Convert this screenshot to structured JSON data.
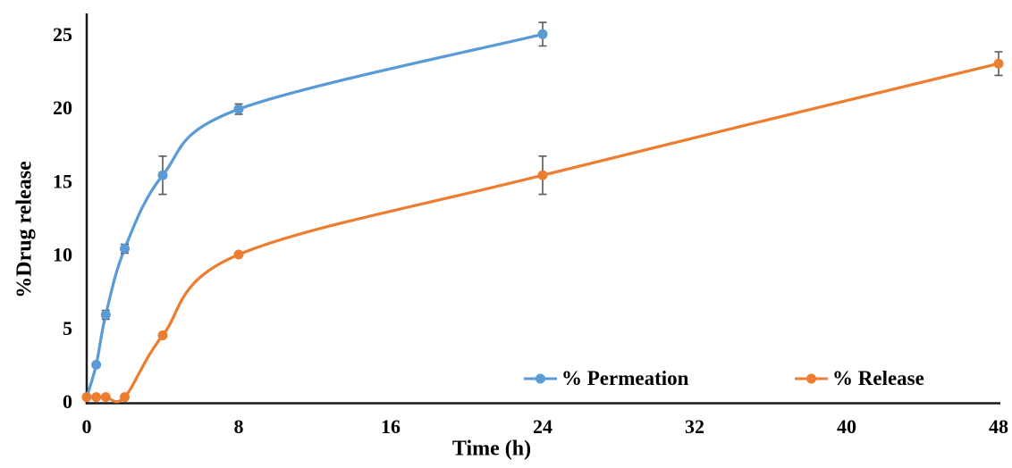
{
  "chart_data": {
    "type": "line",
    "title": "",
    "xlabel": "Time (h)",
    "ylabel": "%Drug release",
    "xlim": [
      0,
      48
    ],
    "ylim": [
      0,
      25
    ],
    "x_ticks": [
      0,
      8,
      16,
      24,
      32,
      40,
      48
    ],
    "y_ticks": [
      0,
      5,
      10,
      15,
      20,
      25
    ],
    "grid": false,
    "smooth_lines": true,
    "legend_position": "inside-bottom-right",
    "axis_color": "#1a1a1a",
    "error_bar_color": "#595959",
    "series": [
      {
        "name": "% Permeation",
        "color": "#5B9BD5",
        "x": [
          0,
          0.5,
          1,
          2,
          4,
          8,
          24
        ],
        "y": [
          0.3,
          2.5,
          5.9,
          10.4,
          15.4,
          19.9,
          25.0
        ],
        "error": [
          0,
          0,
          0.3,
          0.3,
          1.3,
          0.35,
          0.8
        ]
      },
      {
        "name": "% Release",
        "color": "#ED7D31",
        "x": [
          0,
          0.5,
          1,
          2,
          4,
          8,
          24,
          48
        ],
        "y": [
          0.3,
          0.3,
          0.3,
          0.3,
          4.5,
          10.0,
          15.4,
          23.0
        ],
        "error": [
          0,
          0,
          0,
          0,
          0,
          0,
          1.3,
          0.8
        ]
      }
    ]
  }
}
